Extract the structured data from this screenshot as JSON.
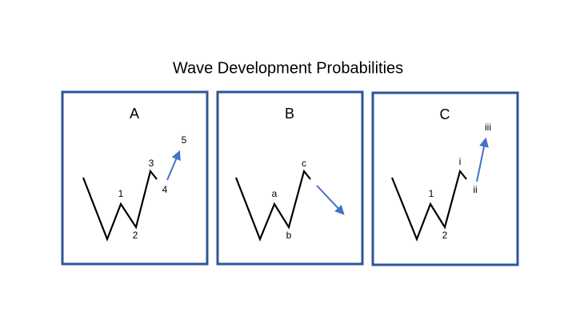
{
  "title": "Wave Development Probabilities",
  "panels": [
    {
      "label": "A",
      "wave_labels": [
        "1",
        "2",
        "3",
        "4",
        "5"
      ]
    },
    {
      "label": "B",
      "wave_labels": [
        "a",
        "b",
        "c"
      ]
    },
    {
      "label": "C",
      "wave_labels": [
        "1",
        "2",
        "i",
        "ii",
        "iii"
      ]
    }
  ]
}
